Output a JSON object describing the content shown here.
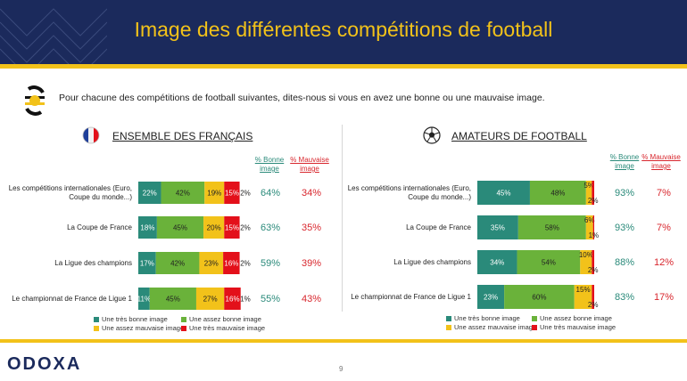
{
  "header": {
    "title": "Image des différentes compétitions de football"
  },
  "question": "Pour chacune des compétitions de football suivantes, dites-nous si vous en avez une bonne ou une mauvaise image.",
  "columns": {
    "good": "% Bonne image",
    "bad": "% Mauvaise image"
  },
  "legend": [
    "Une très bonne image",
    "Une assez bonne image",
    "Une assez mauvaise image",
    "Une très mauvaise image"
  ],
  "colors": {
    "tres_bonne": "#2a8a7a",
    "assez_bonne": "#6ab23a",
    "assez_mauvaise": "#f2c21a",
    "tres_mauvaise": "#e3101a",
    "navy": "#1b2a5c"
  },
  "footer": {
    "logo": "ODOXA",
    "page": "9"
  },
  "chart_data": [
    {
      "type": "bar",
      "title": "ENSEMBLE DES FRANÇAIS",
      "icon": "france-flag-icon",
      "stacked": true,
      "orientation": "horizontal",
      "categories": [
        "Les compétitions internationales (Euro, Coupe du monde...)",
        "La Coupe de France",
        "La Ligue des champions",
        "Le championnat de France de Ligue 1"
      ],
      "series": [
        {
          "name": "Une très bonne image",
          "values": [
            22,
            18,
            17,
            11
          ]
        },
        {
          "name": "Une assez bonne image",
          "values": [
            42,
            45,
            42,
            45
          ]
        },
        {
          "name": "Une assez mauvaise image",
          "values": [
            19,
            20,
            23,
            27
          ]
        },
        {
          "name": "Une très mauvaise image",
          "values": [
            15,
            15,
            16,
            16
          ]
        },
        {
          "name": "",
          "values": [
            2,
            2,
            2,
            1
          ]
        }
      ],
      "good": [
        "64%",
        "63%",
        "59%",
        "55%"
      ],
      "bad": [
        "34%",
        "35%",
        "39%",
        "43%"
      ]
    },
    {
      "type": "bar",
      "title": "AMATEURS DE FOOTBALL",
      "icon": "football-icon",
      "stacked": true,
      "orientation": "horizontal",
      "categories": [
        "Les compétitions internationales (Euro, Coupe du monde...)",
        "La Coupe de France",
        "La Ligue des champions",
        "Le championnat de France de Ligue 1"
      ],
      "series": [
        {
          "name": "Une très bonne image",
          "values": [
            45,
            35,
            34,
            23
          ]
        },
        {
          "name": "Une assez bonne image",
          "values": [
            48,
            58,
            54,
            60
          ]
        },
        {
          "name": "Une assez mauvaise image",
          "values": [
            5,
            6,
            10,
            15
          ]
        },
        {
          "name": "Une très mauvaise image",
          "values": [
            2,
            1,
            2,
            2
          ]
        }
      ],
      "good": [
        "93%",
        "93%",
        "88%",
        "83%"
      ],
      "bad": [
        "7%",
        "7%",
        "12%",
        "17%"
      ]
    }
  ]
}
